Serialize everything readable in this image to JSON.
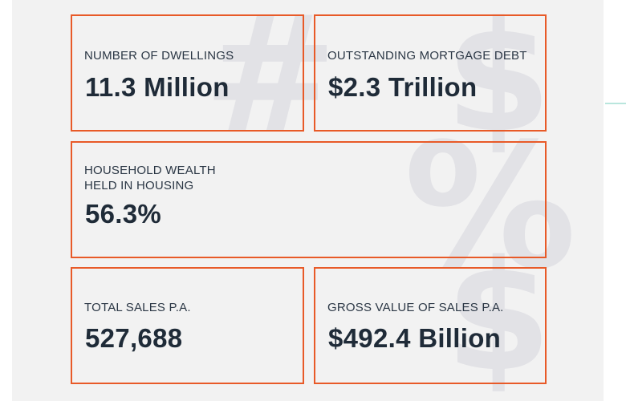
{
  "stats": [
    {
      "label": "NUMBER OF DWELLINGS",
      "value": "11.3 Million"
    },
    {
      "label": "OUTSTANDING MORTGAGE DEBT",
      "value": "$2.3 Trillion"
    },
    {
      "label": "HOUSEHOLD WEALTH\nHELD IN HOUSING",
      "value": "56.3%"
    },
    {
      "label": "TOTAL SALES P.A.",
      "value": "527,688"
    },
    {
      "label": "GROSS VALUE OF SALES P.A.",
      "value": "$492.4 Billion"
    }
  ],
  "watermarks": {
    "hash": "#",
    "dollar": "$",
    "percent": "%"
  },
  "colors": {
    "border": "#e85a28",
    "text": "#1f2b38",
    "panel_background": "#f2f2f2",
    "watermark": "#e2e2e6"
  },
  "icons": [
    "hash-symbol",
    "dollar-symbol",
    "percent-symbol"
  ]
}
